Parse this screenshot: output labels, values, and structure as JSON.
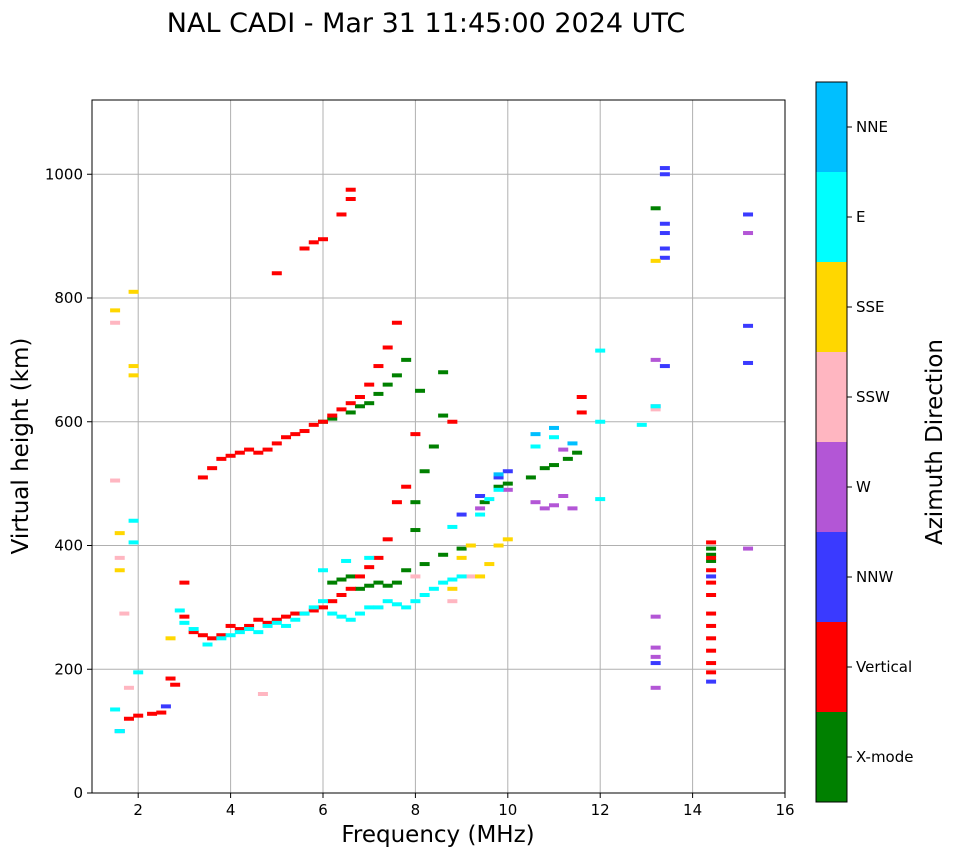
{
  "chart_data": {
    "type": "scatter",
    "title": "NAL CADI - Mar 31 11:45:00 2024 UTC",
    "xlabel": "Frequency (MHz)",
    "ylabel": "Virtual height (km)",
    "xlim": [
      1,
      16
    ],
    "ylim": [
      0,
      1120
    ],
    "xticks": [
      2,
      4,
      6,
      8,
      10,
      12,
      14,
      16
    ],
    "yticks": [
      0,
      200,
      400,
      600,
      800,
      1000
    ],
    "grid": true,
    "colorbar": {
      "title": "Azimuth Direction",
      "categories": [
        {
          "label": "X-mode",
          "color": "#008000"
        },
        {
          "label": "Vertical",
          "color": "#ff0000"
        },
        {
          "label": "NNW",
          "color": "#3a3aff"
        },
        {
          "label": "W",
          "color": "#b356d6"
        },
        {
          "label": "SSW",
          "color": "#ffb6c1"
        },
        {
          "label": "SSE",
          "color": "#ffd700"
        },
        {
          "label": "E",
          "color": "#00ffff"
        },
        {
          "label": "NNE",
          "color": "#00bfff"
        }
      ]
    },
    "series": [
      {
        "name": "X-mode",
        "points": [
          [
            6.2,
            340
          ],
          [
            6.4,
            345
          ],
          [
            6.6,
            350
          ],
          [
            6.8,
            330
          ],
          [
            7.0,
            335
          ],
          [
            7.2,
            340
          ],
          [
            7.4,
            335
          ],
          [
            7.6,
            340
          ],
          [
            7.8,
            360
          ],
          [
            8.2,
            370
          ],
          [
            8.6,
            385
          ],
          [
            9.0,
            395
          ],
          [
            9.5,
            470
          ],
          [
            9.8,
            495
          ],
          [
            10.0,
            500
          ],
          [
            10.5,
            510
          ],
          [
            10.8,
            525
          ],
          [
            11.0,
            530
          ],
          [
            11.3,
            540
          ],
          [
            11.5,
            550
          ],
          [
            6.0,
            600
          ],
          [
            6.2,
            605
          ],
          [
            6.6,
            615
          ],
          [
            6.8,
            625
          ],
          [
            7.0,
            630
          ],
          [
            7.2,
            645
          ],
          [
            7.4,
            660
          ],
          [
            7.6,
            675
          ],
          [
            7.8,
            700
          ],
          [
            8.1,
            650
          ],
          [
            8.6,
            680
          ],
          [
            8.6,
            610
          ],
          [
            8.4,
            560
          ],
          [
            8.2,
            520
          ],
          [
            8.0,
            470
          ],
          [
            8.0,
            425
          ],
          [
            13.2,
            945
          ],
          [
            14.4,
            395
          ],
          [
            14.4,
            385
          ],
          [
            14.4,
            375
          ]
        ]
      },
      {
        "name": "Vertical",
        "points": [
          [
            1.8,
            120
          ],
          [
            2.0,
            125
          ],
          [
            2.3,
            128
          ],
          [
            2.5,
            130
          ],
          [
            2.7,
            185
          ],
          [
            2.8,
            175
          ],
          [
            3.0,
            340
          ],
          [
            3.0,
            285
          ],
          [
            3.2,
            260
          ],
          [
            3.4,
            255
          ],
          [
            3.6,
            250
          ],
          [
            3.8,
            255
          ],
          [
            4.0,
            270
          ],
          [
            4.2,
            265
          ],
          [
            4.4,
            270
          ],
          [
            4.6,
            280
          ],
          [
            4.8,
            275
          ],
          [
            5.0,
            280
          ],
          [
            5.2,
            285
          ],
          [
            5.4,
            290
          ],
          [
            5.6,
            290
          ],
          [
            5.8,
            295
          ],
          [
            6.0,
            300
          ],
          [
            6.2,
            310
          ],
          [
            6.4,
            320
          ],
          [
            6.6,
            330
          ],
          [
            6.8,
            350
          ],
          [
            7.0,
            365
          ],
          [
            7.2,
            380
          ],
          [
            7.4,
            410
          ],
          [
            7.6,
            470
          ],
          [
            7.8,
            495
          ],
          [
            3.4,
            510
          ],
          [
            3.6,
            525
          ],
          [
            3.8,
            540
          ],
          [
            4.0,
            545
          ],
          [
            4.2,
            550
          ],
          [
            4.4,
            555
          ],
          [
            4.6,
            550
          ],
          [
            4.8,
            555
          ],
          [
            5.0,
            565
          ],
          [
            5.2,
            575
          ],
          [
            5.4,
            580
          ],
          [
            5.6,
            585
          ],
          [
            5.8,
            595
          ],
          [
            6.0,
            600
          ],
          [
            6.2,
            610
          ],
          [
            6.4,
            620
          ],
          [
            6.6,
            630
          ],
          [
            6.8,
            640
          ],
          [
            7.0,
            660
          ],
          [
            7.2,
            690
          ],
          [
            7.4,
            720
          ],
          [
            7.6,
            760
          ],
          [
            5.0,
            840
          ],
          [
            5.6,
            880
          ],
          [
            5.8,
            890
          ],
          [
            6.0,
            895
          ],
          [
            6.4,
            935
          ],
          [
            6.6,
            960
          ],
          [
            6.6,
            975
          ],
          [
            8.0,
            580
          ],
          [
            8.8,
            600
          ],
          [
            14.4,
            405
          ],
          [
            14.4,
            380
          ],
          [
            14.4,
            360
          ],
          [
            14.4,
            340
          ],
          [
            14.4,
            320
          ],
          [
            14.4,
            290
          ],
          [
            14.4,
            270
          ],
          [
            14.4,
            250
          ],
          [
            14.4,
            230
          ],
          [
            14.4,
            210
          ],
          [
            14.4,
            195
          ],
          [
            11.6,
            640
          ],
          [
            11.6,
            615
          ]
        ]
      },
      {
        "name": "NNW",
        "points": [
          [
            1.6,
            100
          ],
          [
            2.6,
            140
          ],
          [
            9.0,
            450
          ],
          [
            9.4,
            480
          ],
          [
            9.8,
            510
          ],
          [
            10.0,
            520
          ],
          [
            13.4,
            1010
          ],
          [
            13.4,
            1000
          ],
          [
            13.4,
            920
          ],
          [
            13.4,
            905
          ],
          [
            13.4,
            880
          ],
          [
            13.4,
            865
          ],
          [
            13.4,
            690
          ],
          [
            15.2,
            935
          ],
          [
            15.2,
            755
          ],
          [
            15.2,
            695
          ],
          [
            13.2,
            210
          ],
          [
            14.4,
            350
          ],
          [
            14.4,
            180
          ]
        ]
      },
      {
        "name": "W",
        "points": [
          [
            9.4,
            460
          ],
          [
            10.6,
            470
          ],
          [
            10.8,
            460
          ],
          [
            11.0,
            465
          ],
          [
            11.2,
            480
          ],
          [
            11.4,
            460
          ],
          [
            11.2,
            555
          ],
          [
            13.2,
            700
          ],
          [
            13.2,
            625
          ],
          [
            13.2,
            285
          ],
          [
            13.2,
            235
          ],
          [
            13.2,
            220
          ],
          [
            13.2,
            170
          ],
          [
            15.2,
            905
          ],
          [
            15.2,
            395
          ],
          [
            10.0,
            490
          ]
        ]
      },
      {
        "name": "SSW",
        "points": [
          [
            1.5,
            505
          ],
          [
            1.5,
            760
          ],
          [
            1.6,
            380
          ],
          [
            1.7,
            290
          ],
          [
            1.8,
            170
          ],
          [
            4.7,
            160
          ],
          [
            8.0,
            350
          ],
          [
            8.8,
            310
          ],
          [
            9.2,
            350
          ],
          [
            13.2,
            620
          ]
        ]
      },
      {
        "name": "SSE",
        "points": [
          [
            1.5,
            780
          ],
          [
            1.6,
            420
          ],
          [
            1.6,
            360
          ],
          [
            1.9,
            810
          ],
          [
            1.9,
            690
          ],
          [
            1.9,
            675
          ],
          [
            2.7,
            250
          ],
          [
            8.8,
            330
          ],
          [
            9.0,
            380
          ],
          [
            9.2,
            400
          ],
          [
            9.4,
            350
          ],
          [
            9.6,
            370
          ],
          [
            9.8,
            400
          ],
          [
            10.0,
            410
          ],
          [
            13.2,
            860
          ]
        ]
      },
      {
        "name": "E",
        "points": [
          [
            1.5,
            135
          ],
          [
            1.6,
            100
          ],
          [
            1.9,
            440
          ],
          [
            1.9,
            405
          ],
          [
            2.0,
            195
          ],
          [
            2.9,
            295
          ],
          [
            3.0,
            275
          ],
          [
            3.2,
            265
          ],
          [
            3.5,
            240
          ],
          [
            3.8,
            250
          ],
          [
            4.0,
            255
          ],
          [
            4.2,
            260
          ],
          [
            4.4,
            265
          ],
          [
            4.6,
            260
          ],
          [
            4.8,
            270
          ],
          [
            5.0,
            275
          ],
          [
            5.2,
            270
          ],
          [
            5.4,
            280
          ],
          [
            5.6,
            290
          ],
          [
            5.8,
            300
          ],
          [
            6.0,
            310
          ],
          [
            6.2,
            290
          ],
          [
            6.4,
            285
          ],
          [
            6.6,
            280
          ],
          [
            6.8,
            290
          ],
          [
            7.0,
            300
          ],
          [
            7.2,
            300
          ],
          [
            7.4,
            310
          ],
          [
            7.6,
            305
          ],
          [
            7.8,
            300
          ],
          [
            8.0,
            310
          ],
          [
            8.2,
            320
          ],
          [
            8.4,
            330
          ],
          [
            8.6,
            340
          ],
          [
            8.8,
            345
          ],
          [
            9.0,
            350
          ],
          [
            6.0,
            360
          ],
          [
            6.5,
            375
          ],
          [
            7.0,
            380
          ],
          [
            8.8,
            430
          ],
          [
            9.4,
            450
          ],
          [
            9.6,
            475
          ],
          [
            9.8,
            490
          ],
          [
            10.6,
            560
          ],
          [
            11.0,
            575
          ],
          [
            12.0,
            715
          ],
          [
            12.0,
            600
          ],
          [
            12.0,
            475
          ],
          [
            12.9,
            595
          ],
          [
            13.2,
            625
          ]
        ]
      },
      {
        "name": "NNE",
        "points": [
          [
            10.6,
            580
          ],
          [
            11.0,
            590
          ],
          [
            11.4,
            565
          ],
          [
            9.8,
            515
          ]
        ]
      }
    ]
  }
}
